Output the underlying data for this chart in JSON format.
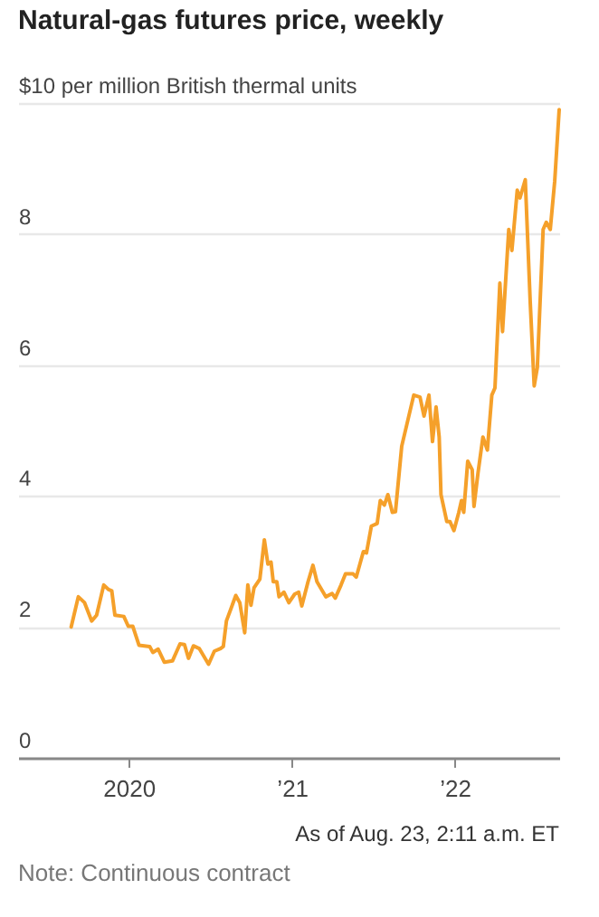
{
  "chart_data": {
    "type": "line",
    "title": "Natural-gas futures price, weekly",
    "annotations": [
      "As of Aug. 23, 2:11 a.m. ET",
      "Note: Continuous contract"
    ],
    "x": [
      "2019-08-25",
      "2019-09-10",
      "2019-09-24",
      "2019-10-10",
      "2019-10-21",
      "2019-11-06",
      "2019-11-17",
      "2019-11-24",
      "2019-12-01",
      "2019-12-21",
      "2019-12-31",
      "2020-01-10",
      "2020-01-24",
      "2020-02-17",
      "2020-02-24",
      "2020-03-07",
      "2020-03-21",
      "2020-04-08",
      "2020-04-25",
      "2020-05-05",
      "2020-05-14",
      "2020-05-25",
      "2020-06-07",
      "2020-06-28",
      "2020-07-11",
      "2020-07-25",
      "2020-07-31",
      "2020-08-07",
      "2020-08-28",
      "2020-09-06",
      "2020-09-17",
      "2020-09-24",
      "2020-10-01",
      "2020-10-08",
      "2020-10-21",
      "2020-10-31",
      "2020-11-08",
      "2020-11-15",
      "2020-11-20",
      "2020-11-28",
      "2020-12-03",
      "2020-12-14",
      "2020-12-25",
      "2021-01-07",
      "2021-01-16",
      "2021-01-23",
      "2021-02-06",
      "2021-02-17",
      "2021-02-26",
      "2021-03-18",
      "2021-04-01",
      "2021-04-08",
      "2021-04-21",
      "2021-05-01",
      "2021-05-18",
      "2021-05-25",
      "2021-06-10",
      "2021-06-17",
      "2021-06-28",
      "2021-07-11",
      "2021-07-18",
      "2021-07-27",
      "2021-08-04",
      "2021-08-14",
      "2021-08-21",
      "2021-09-04",
      "2021-10-01",
      "2021-10-15",
      "2021-10-24",
      "2021-11-04",
      "2021-11-12",
      "2021-11-20",
      "2021-11-27",
      "2021-12-01",
      "2021-12-14",
      "2021-12-21",
      "2021-12-30",
      "2022-01-10",
      "2022-01-16",
      "2022-01-21",
      "2022-01-30",
      "2022-02-09",
      "2022-02-13",
      "2022-02-22",
      "2022-03-05",
      "2022-03-15",
      "2022-03-25",
      "2022-04-01",
      "2022-04-12",
      "2022-04-18",
      "2022-05-02",
      "2022-05-09",
      "2022-05-21",
      "2022-05-27",
      "2022-06-08",
      "2022-06-19",
      "2022-06-28",
      "2022-07-05",
      "2022-07-18",
      "2022-07-25",
      "2022-08-03",
      "2022-08-13",
      "2022-08-23"
    ],
    "series": [
      {
        "color": "#f5a02a",
        "values": [
          2.0,
          2.46,
          2.37,
          2.09,
          2.18,
          2.64,
          2.57,
          2.55,
          2.18,
          2.16,
          2.01,
          2.01,
          1.72,
          1.7,
          1.61,
          1.66,
          1.46,
          1.48,
          1.74,
          1.73,
          1.52,
          1.71,
          1.67,
          1.43,
          1.63,
          1.67,
          1.7,
          2.09,
          2.48,
          2.37,
          1.91,
          2.64,
          2.33,
          2.6,
          2.73,
          3.33,
          2.96,
          2.99,
          2.69,
          2.69,
          2.46,
          2.53,
          2.37,
          2.5,
          2.53,
          2.32,
          2.69,
          2.94,
          2.69,
          2.46,
          2.51,
          2.44,
          2.64,
          2.81,
          2.81,
          2.76,
          3.15,
          3.13,
          3.54,
          3.58,
          3.93,
          3.86,
          4.02,
          3.75,
          3.76,
          4.76,
          5.54,
          5.51,
          5.22,
          5.54,
          4.83,
          5.36,
          4.9,
          4.02,
          3.61,
          3.61,
          3.47,
          3.75,
          3.93,
          3.75,
          4.53,
          4.4,
          3.84,
          4.35,
          4.9,
          4.7,
          5.54,
          5.65,
          7.25,
          6.51,
          8.07,
          7.75,
          8.67,
          8.55,
          8.83,
          6.97,
          5.68,
          5.96,
          8.07,
          8.18,
          8.07,
          8.81,
          9.9
        ]
      }
    ],
    "xlim": [
      "2019-04-28",
      "2022-08-23"
    ],
    "xticks": [
      {
        "value": "2020-01-01",
        "label": "2020"
      },
      {
        "value": "2021-01-01",
        "label": "’21"
      },
      {
        "value": "2022-01-01",
        "label": "’22"
      }
    ],
    "ylim": [
      0,
      10
    ],
    "yticks": [
      0,
      2,
      4,
      6,
      8,
      {
        "value": 10,
        "label": "$10 per million British thermal units"
      }
    ],
    "grid": "y",
    "marker": "none",
    "line_style": "solid"
  }
}
